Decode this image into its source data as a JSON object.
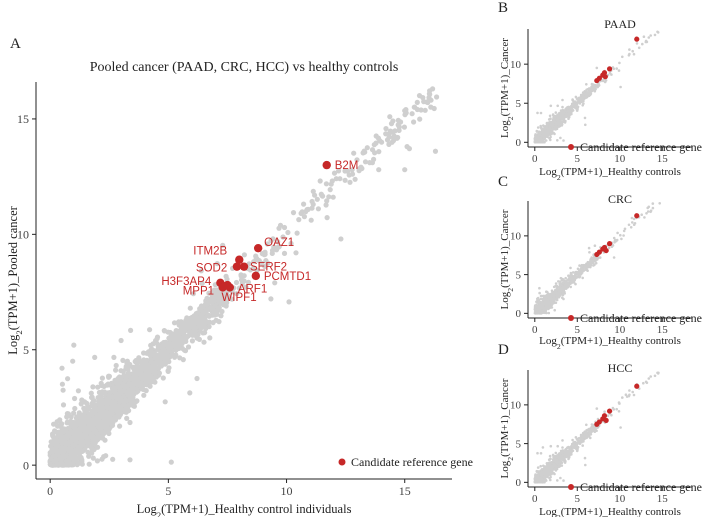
{
  "colors": {
    "background": "#cfcfcf",
    "highlight": "#c62828",
    "axis": "#222222"
  },
  "chart_data": [
    {
      "panel": "A",
      "type": "scatter",
      "title": "Pooled cancer (PAAD, CRC, HCC) vs healthy controls",
      "xlabel_prefix": "Log",
      "xlabel_sub": "2",
      "xlabel_rest": "(TPM+1)_Healthy control individuals",
      "ylabel_prefix": "Log",
      "ylabel_sub": "2",
      "ylabel_rest": "(TPM+1)_Pooled cancer",
      "xlim": [
        -0.6,
        17
      ],
      "ylim": [
        -0.6,
        16.6
      ],
      "xticks": [
        0,
        5,
        10,
        15
      ],
      "yticks": [
        0,
        5,
        10,
        15
      ],
      "legend": "Candidate reference gene",
      "background_points": "grey cloud of genes along the diagonal (0–16.5)",
      "highlighted": [
        {
          "gene": "B2M",
          "x": 11.7,
          "y": 13.0
        },
        {
          "gene": "OAZ1",
          "x": 8.8,
          "y": 9.4
        },
        {
          "gene": "ITM2B",
          "x": 8.0,
          "y": 8.9
        },
        {
          "gene": "SERF2",
          "x": 8.2,
          "y": 8.6
        },
        {
          "gene": "SOD2",
          "x": 7.9,
          "y": 8.6
        },
        {
          "gene": "PCMTD1",
          "x": 8.7,
          "y": 8.2
        },
        {
          "gene": "H3F3AP4",
          "x": 7.2,
          "y": 7.9
        },
        {
          "gene": "MPP1",
          "x": 7.3,
          "y": 7.7
        },
        {
          "gene": "ARF1",
          "x": 7.6,
          "y": 7.7
        },
        {
          "gene": "WIPF1",
          "x": 7.5,
          "y": 7.8
        }
      ]
    },
    {
      "panel": "B",
      "type": "scatter",
      "title": "PAAD",
      "xlabel_prefix": "Log",
      "xlabel_sub": "2",
      "xlabel_rest": "(TPM+1)_Healthy controls",
      "ylabel_prefix": "Log",
      "ylabel_sub": "2",
      "ylabel_rest": "(TPM+1)_Cancer",
      "xlim": [
        -0.8,
        18.5
      ],
      "ylim": [
        -0.6,
        14.5
      ],
      "xticks": [
        0,
        5,
        10,
        15
      ],
      "yticks": [
        0,
        5,
        10
      ],
      "legend": "Candidate reference gene",
      "highlighted": [
        [
          12.0,
          13.2
        ],
        [
          8.8,
          9.4
        ],
        [
          8.2,
          8.9
        ],
        [
          8.0,
          8.6
        ],
        [
          7.6,
          8.2
        ],
        [
          7.3,
          7.9
        ],
        [
          8.3,
          8.4
        ]
      ]
    },
    {
      "panel": "C",
      "type": "scatter",
      "title": "CRC",
      "xlabel_prefix": "Log",
      "xlabel_sub": "2",
      "xlabel_rest": "(TPM+1)_Healthy controls",
      "ylabel_prefix": "Log",
      "ylabel_sub": "2",
      "ylabel_rest": "(TPM+1)_Cancer",
      "xlim": [
        -0.8,
        18.5
      ],
      "ylim": [
        -0.6,
        14.5
      ],
      "xticks": [
        0,
        5,
        10,
        15
      ],
      "yticks": [
        0,
        5,
        10
      ],
      "legend": "Candidate reference gene",
      "highlighted": [
        [
          12.0,
          12.6
        ],
        [
          8.8,
          9.0
        ],
        [
          8.2,
          8.5
        ],
        [
          8.0,
          8.3
        ],
        [
          7.6,
          7.9
        ],
        [
          7.3,
          7.6
        ],
        [
          8.4,
          8.1
        ]
      ]
    },
    {
      "panel": "D",
      "type": "scatter",
      "title": "HCC",
      "xlabel_prefix": "Log",
      "xlabel_sub": "2",
      "xlabel_rest": "(TPM+1)_Healthy controls",
      "ylabel_prefix": "Log",
      "ylabel_sub": "2",
      "ylabel_rest": "(TPM+1)_Cancer",
      "xlim": [
        -0.8,
        18.5
      ],
      "ylim": [
        -0.6,
        14.5
      ],
      "xticks": [
        0,
        5,
        10,
        15
      ],
      "yticks": [
        0,
        5,
        10
      ],
      "legend": "Candidate reference gene",
      "highlighted": [
        [
          12.0,
          12.4
        ],
        [
          8.8,
          9.2
        ],
        [
          8.2,
          8.6
        ],
        [
          8.0,
          8.2
        ],
        [
          7.6,
          7.8
        ],
        [
          7.3,
          7.5
        ],
        [
          8.4,
          8.0
        ]
      ]
    }
  ]
}
